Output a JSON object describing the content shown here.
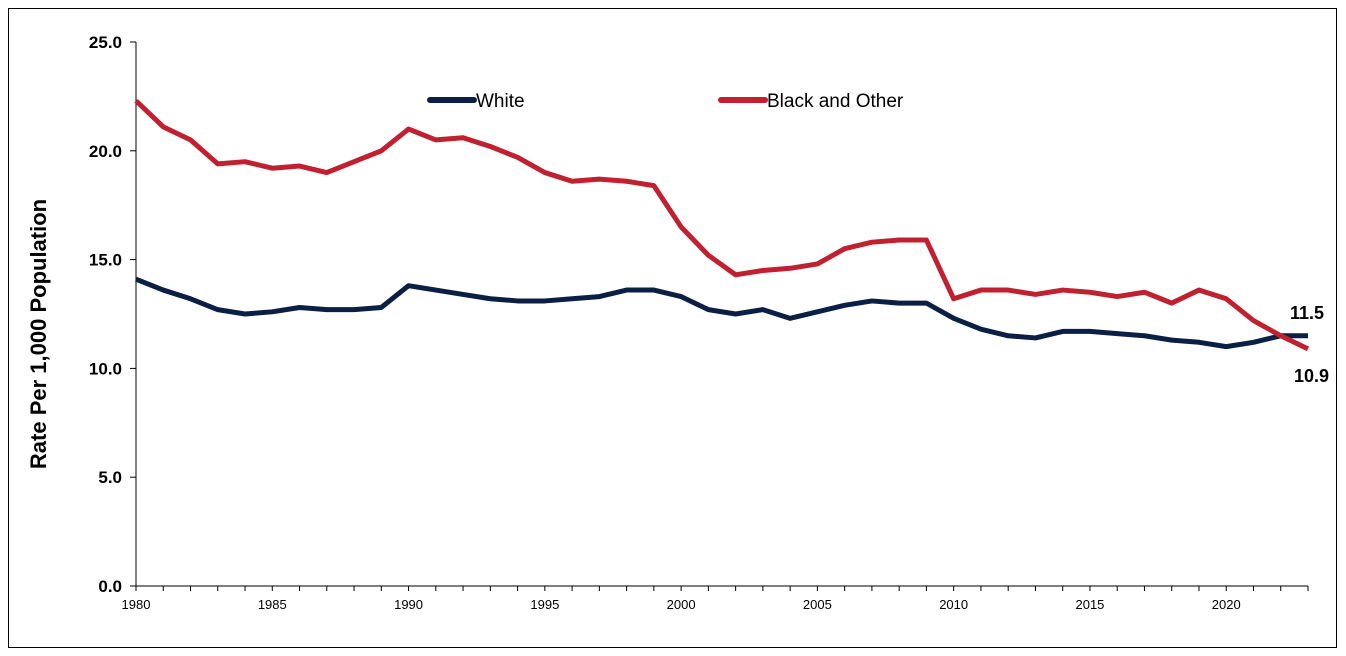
{
  "chart_data": {
    "type": "line",
    "title": "",
    "xlabel": "",
    "ylabel": "Rate Per 1,000 Population",
    "xlim": [
      1980,
      2023
    ],
    "ylim": [
      0,
      25
    ],
    "grid": false,
    "legend_placement": "top",
    "x": [
      1980,
      1981,
      1982,
      1983,
      1984,
      1985,
      1986,
      1987,
      1988,
      1989,
      1990,
      1991,
      1992,
      1993,
      1994,
      1995,
      1996,
      1997,
      1998,
      1999,
      2000,
      2001,
      2002,
      2003,
      2004,
      2005,
      2006,
      2007,
      2008,
      2009,
      2010,
      2011,
      2012,
      2013,
      2014,
      2015,
      2016,
      2017,
      2018,
      2019,
      2020,
      2021,
      2022,
      2023
    ],
    "x_tick_labels": [
      "1980",
      "1985",
      "1990",
      "1995",
      "2000",
      "2005",
      "2010",
      "2015",
      "2020"
    ],
    "y_tick_labels": [
      "0.0",
      "5.0",
      "10.0",
      "15.0",
      "20.0",
      "25.0"
    ],
    "series": [
      {
        "name": "White",
        "color": "#0b1f44",
        "values": [
          14.1,
          13.6,
          13.2,
          12.7,
          12.5,
          12.6,
          12.8,
          12.7,
          12.7,
          12.8,
          13.8,
          13.6,
          13.4,
          13.2,
          13.1,
          13.1,
          13.2,
          13.3,
          13.6,
          13.6,
          13.3,
          12.7,
          12.5,
          12.7,
          12.3,
          12.6,
          12.9,
          13.1,
          13.0,
          13.0,
          12.3,
          11.8,
          11.5,
          11.4,
          11.7,
          11.7,
          11.6,
          11.5,
          11.3,
          11.2,
          11.0,
          11.2,
          11.5,
          11.5
        ],
        "end_label": "11.5"
      },
      {
        "name": "Black and Other",
        "color": "#c0202f",
        "values": [
          22.3,
          21.1,
          20.5,
          19.4,
          19.5,
          19.2,
          19.3,
          19.0,
          19.5,
          20.0,
          21.0,
          20.5,
          20.6,
          20.2,
          19.7,
          19.0,
          18.6,
          18.7,
          18.6,
          18.4,
          16.5,
          15.2,
          14.3,
          14.5,
          14.6,
          14.8,
          15.5,
          15.8,
          15.9,
          15.9,
          13.2,
          13.6,
          13.6,
          13.4,
          13.6,
          13.5,
          13.3,
          13.5,
          13.0,
          13.6,
          13.2,
          12.2,
          11.5,
          10.9
        ],
        "end_label": "10.9"
      }
    ]
  }
}
